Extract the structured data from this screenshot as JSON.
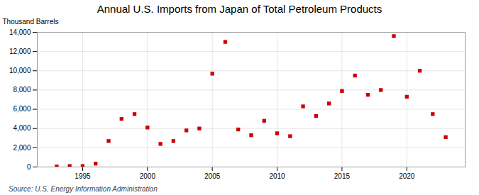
{
  "chart_data": {
    "type": "scatter",
    "title": "Annual U.S. Imports from Japan of Total Petroleum Products",
    "ylabel": "Thousand Barrels",
    "source": "Source: U.S. Energy Information Administration",
    "x": [
      1993,
      1994,
      1995,
      1996,
      1997,
      1998,
      1999,
      2000,
      2001,
      2002,
      2003,
      2004,
      2005,
      2006,
      2007,
      2008,
      2009,
      2010,
      2011,
      2012,
      2013,
      2014,
      2015,
      2016,
      2017,
      2018,
      2019,
      2020,
      2021,
      2022,
      2023
    ],
    "values": [
      50,
      100,
      100,
      350,
      2700,
      5000,
      5500,
      4100,
      2400,
      2700,
      3800,
      4000,
      9700,
      13000,
      3900,
      3300,
      4800,
      3500,
      3200,
      6300,
      5300,
      6600,
      7900,
      9500,
      7500,
      8000,
      13600,
      7300,
      10000,
      5500,
      3100
    ],
    "color": "#cc0000",
    "marker": "square",
    "xlim": [
      1991.5,
      2024.5
    ],
    "xticks": [
      1995,
      2000,
      2005,
      2010,
      2015,
      2020
    ],
    "ylim": [
      0,
      14000
    ],
    "yticks": [
      0,
      {
        "value": 2000,
        "label": "2,000"
      },
      {
        "value": 4000,
        "label": "4,000"
      },
      {
        "value": 6000,
        "label": "6,000"
      },
      {
        "value": 8000,
        "label": "8,000"
      },
      {
        "value": 10000,
        "label": "10,000"
      },
      {
        "value": 12000,
        "label": "12,000"
      },
      {
        "value": 14000,
        "label": "14,000"
      }
    ],
    "grid": true
  }
}
